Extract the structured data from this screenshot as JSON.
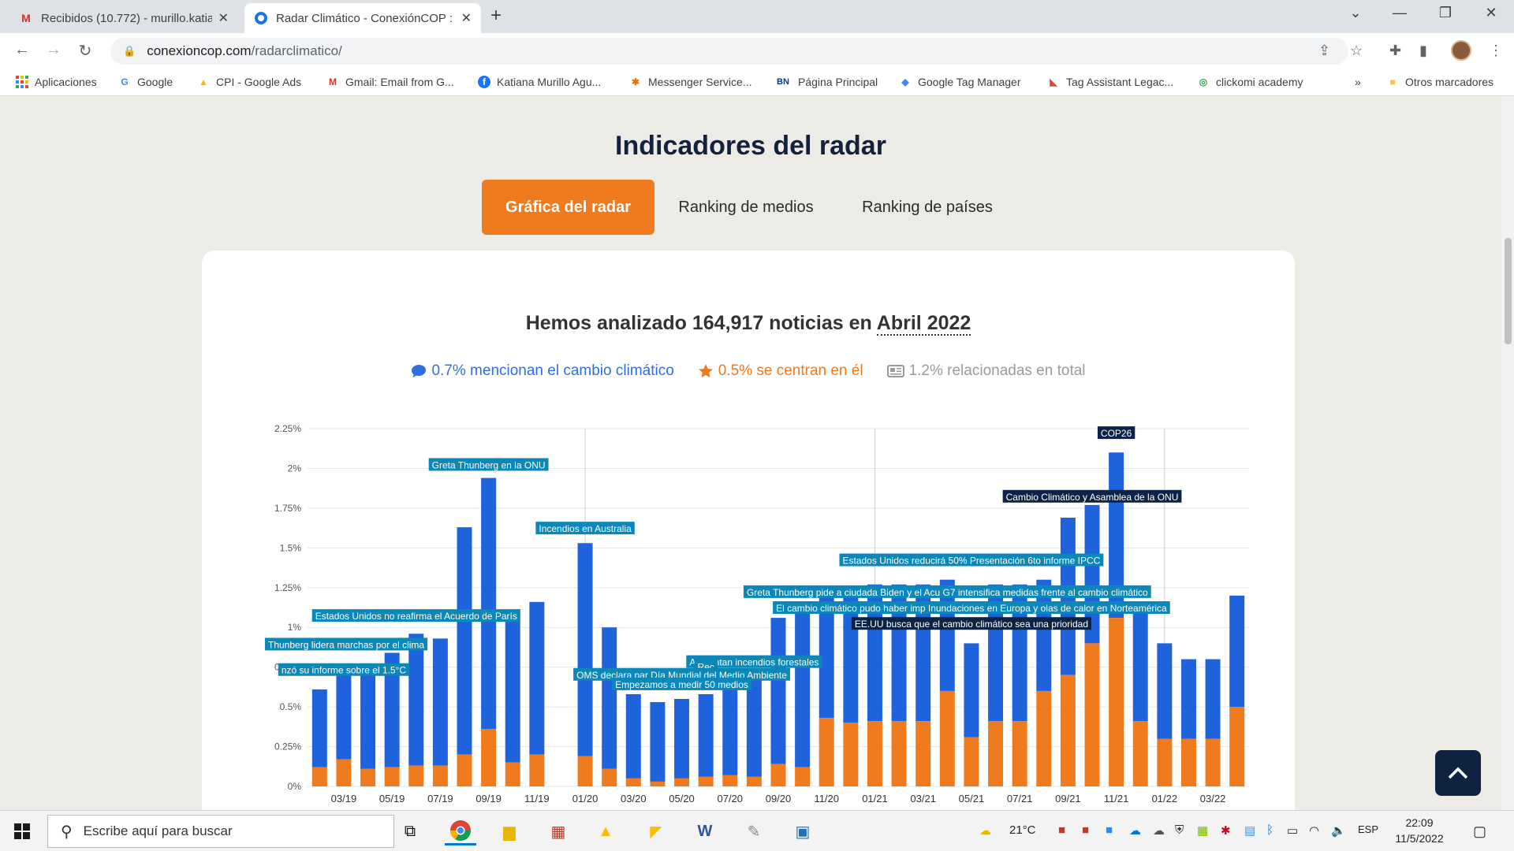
{
  "browser": {
    "tabs": [
      {
        "title": "Recibidos (10.772) - murillo.katia",
        "icon": "gmail-icon"
      },
      {
        "title": "Radar Climático - ConexiónCOP :",
        "icon": "conexioncop-icon"
      }
    ],
    "url_domain": "conexioncop.com",
    "url_path": "/radarclimatico/",
    "bookmarks": [
      {
        "label": "Aplicaciones",
        "icon": "apps-grid-icon"
      },
      {
        "label": "Google",
        "icon": "google-icon"
      },
      {
        "label": "CPI - Google Ads",
        "icon": "google-ads-icon"
      },
      {
        "label": "Gmail: Email from G...",
        "icon": "gmail-icon"
      },
      {
        "label": "Katiana Murillo Agu...",
        "icon": "facebook-icon"
      },
      {
        "label": "Messenger Service...",
        "icon": "messenger-icon"
      },
      {
        "label": "Página Principal",
        "icon": "bn-icon",
        "icon_text": "BN"
      },
      {
        "label": "Google Tag Manager",
        "icon": "tag-manager-icon"
      },
      {
        "label": "Tag Assistant Legac...",
        "icon": "tag-assistant-icon"
      },
      {
        "label": "clickomi academy",
        "icon": "clickomi-icon"
      }
    ],
    "more_bookmarks": "»",
    "other_bookmarks": "Otros marcadores"
  },
  "page": {
    "section_title": "Indicadores del radar",
    "tabs": [
      {
        "label": "Gráfica del radar",
        "active": true
      },
      {
        "label": "Ranking de medios",
        "active": false
      },
      {
        "label": "Ranking de países",
        "active": false
      }
    ],
    "headline_prefix": "Hemos analizado 164,917 noticias en",
    "headline_month": "Abril 2022",
    "stats": [
      {
        "text": "0.7% mencionan el cambio climático",
        "icon": "comment-icon",
        "color": "#2f6fde"
      },
      {
        "text": "0.5% se centran en él",
        "icon": "star-icon",
        "color": "#f07a1e"
      },
      {
        "text": "1.2% relacionadas en total",
        "icon": "newspaper-icon",
        "color": "#9a9a9a"
      }
    ]
  },
  "chart_data": {
    "type": "bar",
    "stacked": true,
    "y_ticks": [
      "0%",
      "0.25%",
      "0.5%",
      "0.75%",
      "1%",
      "1.25%",
      "1.5%",
      "1.75%",
      "2%",
      "2.25%"
    ],
    "ylim": [
      0,
      2.25
    ],
    "x_tick_labels": [
      "03/19",
      "05/19",
      "07/19",
      "09/19",
      "11/19",
      "01/20",
      "03/20",
      "05/20",
      "07/20",
      "09/20",
      "11/20",
      "01/21",
      "03/21",
      "05/21",
      "07/21",
      "09/21",
      "11/21",
      "01/22",
      "03/22"
    ],
    "categories": [
      "02/19",
      "03/19",
      "04/19",
      "05/19",
      "06/19",
      "07/19",
      "08/19",
      "09/19",
      "10/19",
      "11/19",
      "12/19",
      "01/20",
      "02/20",
      "03/20",
      "04/20",
      "05/20",
      "06/20",
      "07/20",
      "08/20",
      "09/20",
      "10/20",
      "11/20",
      "12/20",
      "01/21",
      "02/21",
      "03/21",
      "04/21",
      "05/21",
      "06/21",
      "07/21",
      "08/21",
      "09/21",
      "10/21",
      "11/21",
      "12/21",
      "01/22",
      "02/22",
      "03/22",
      "04/22"
    ],
    "series": [
      {
        "color": "#f07a1e",
        "values": [
          0.12,
          0.17,
          0.11,
          0.12,
          0.13,
          0.13,
          0.2,
          0.36,
          0.15,
          0.2,
          0.0,
          0.19,
          0.11,
          0.05,
          0.03,
          0.05,
          0.06,
          0.07,
          0.06,
          0.14,
          0.12,
          0.43,
          0.4,
          0.41,
          0.41,
          0.41,
          0.6,
          0.31,
          0.41,
          0.41,
          0.6,
          0.7,
          0.9,
          1.06,
          0.41,
          0.3,
          0.3,
          0.3,
          0.5
        ]
      },
      {
        "color": "#1f63dc",
        "values": [
          0.49,
          0.59,
          0.59,
          0.72,
          0.83,
          0.8,
          1.43,
          1.58,
          0.89,
          0.96,
          0.0,
          1.34,
          0.89,
          0.53,
          0.5,
          0.5,
          0.52,
          0.57,
          0.63,
          0.92,
          1.0,
          0.83,
          0.83,
          0.86,
          0.86,
          0.86,
          0.7,
          0.59,
          0.86,
          0.86,
          0.7,
          0.99,
          0.87,
          1.04,
          0.69,
          0.6,
          0.5,
          0.5,
          0.7
        ]
      }
    ],
    "annotations": [
      {
        "text": "COP26",
        "category": "11/21",
        "value": 2.2,
        "style": "dark"
      },
      {
        "text": "Greta Thunberg en la ONU",
        "category": "09/19",
        "value": 2.0,
        "style": "light"
      },
      {
        "text": "Cambio Climático y Asamblea de la ONU",
        "category": "10/21",
        "value": 1.8,
        "style": "dark"
      },
      {
        "text": "Incendios en Australia",
        "category": "01/20",
        "value": 1.6,
        "style": "light"
      },
      {
        "text": "Estados Unidos reducirá 50% Presentación 6to informe IPCC",
        "category": "05/21",
        "value": 1.4,
        "style": "light"
      },
      {
        "text": "Greta Thunberg pide a ciudada Biden y el Acu G7 intensifica medidas frente al cambio climático",
        "category": "04/21",
        "value": 1.2,
        "style": "light"
      },
      {
        "text": "El cambio climático pudo haber imp Inundaciones en Europa y olas de calor en Norteamérica",
        "category": "05/21",
        "value": 1.1,
        "style": "light"
      },
      {
        "text": "EE.UU busca que el cambio climático sea una prioridad",
        "category": "05/21",
        "value": 1.0,
        "style": "dark"
      },
      {
        "text": "Estados Unidos no reafirma el Acuerdo de París",
        "category": "06/19",
        "value": 1.05,
        "style": "light"
      },
      {
        "text": "Thunberg lidera marchas por el clima",
        "category": "03/19",
        "value": 0.87,
        "style": "light"
      },
      {
        "text": "nzó su informe sobre el 1.5°C",
        "category": "03/19",
        "value": 0.71,
        "style": "light"
      },
      {
        "text": "Aumentan incendios forestales",
        "category": "08/20",
        "value": 0.76,
        "style": "light"
      },
      {
        "text": "Rec",
        "category": "06/20",
        "value": 0.73,
        "style": "light"
      },
      {
        "text": "OMS declara par Día Mundial del Medio Ambiente",
        "category": "05/20",
        "value": 0.68,
        "style": "light"
      },
      {
        "text": "Empezamos a medir 50 medios",
        "category": "05/20",
        "value": 0.62,
        "style": "light"
      }
    ]
  },
  "taskbar": {
    "search_placeholder": "Escribe aquí para buscar",
    "temperature": "21°C",
    "language": "ESP",
    "time": "22:09",
    "date": "11/5/2022"
  }
}
